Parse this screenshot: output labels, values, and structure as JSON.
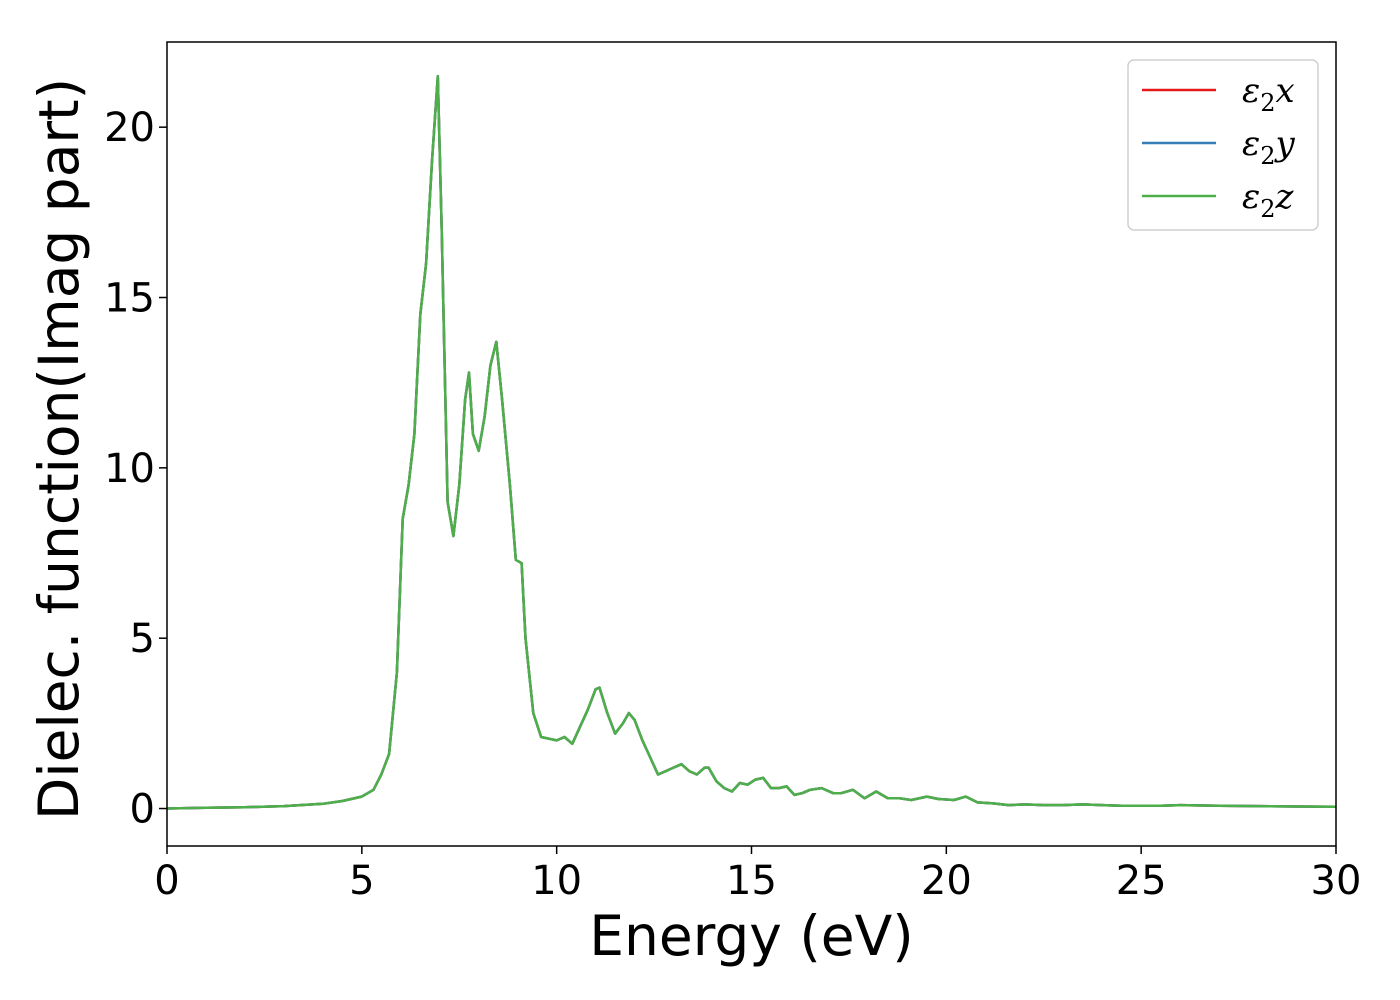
{
  "chart_data": {
    "type": "line",
    "title": "",
    "xlabel": "Energy (eV)",
    "ylabel": "Dielec. function(Imag part)",
    "xlim": [
      0,
      30
    ],
    "ylim": [
      -1.1,
      22.5
    ],
    "xticks": [
      0,
      5,
      10,
      15,
      20,
      25,
      30
    ],
    "yticks": [
      0,
      5,
      10,
      15,
      20
    ],
    "grid": false,
    "legend_position": "top-right",
    "x": [
      0,
      1,
      2,
      3,
      4,
      4.5,
      5,
      5.3,
      5.5,
      5.7,
      5.9,
      6.05,
      6.2,
      6.35,
      6.5,
      6.65,
      6.8,
      6.95,
      7.05,
      7.2,
      7.35,
      7.5,
      7.65,
      7.75,
      7.85,
      8.0,
      8.15,
      8.3,
      8.45,
      8.6,
      8.8,
      8.95,
      9.1,
      9.2,
      9.4,
      9.6,
      9.8,
      10.0,
      10.2,
      10.4,
      10.6,
      10.8,
      11.0,
      11.1,
      11.3,
      11.5,
      11.7,
      11.85,
      12.0,
      12.2,
      12.4,
      12.6,
      12.8,
      13.0,
      13.2,
      13.4,
      13.6,
      13.8,
      13.9,
      14.1,
      14.3,
      14.5,
      14.7,
      14.9,
      15.1,
      15.3,
      15.5,
      15.7,
      15.9,
      16.1,
      16.3,
      16.5,
      16.8,
      17.1,
      17.3,
      17.6,
      17.9,
      18.2,
      18.5,
      18.8,
      19.1,
      19.5,
      19.8,
      20.2,
      20.5,
      20.8,
      21.2,
      21.6,
      22,
      22.5,
      23,
      23.5,
      24,
      24.5,
      25,
      25.5,
      26,
      27,
      28,
      29,
      30
    ],
    "series": [
      {
        "name": "ε₂x",
        "label_base": "ε",
        "label_sub": "2",
        "label_tail": "x",
        "color": "#e41a1c",
        "values": [
          0,
          0.02,
          0.04,
          0.07,
          0.14,
          0.22,
          0.35,
          0.55,
          1.0,
          1.6,
          4.0,
          8.5,
          9.5,
          11.0,
          14.5,
          16.0,
          19.0,
          21.5,
          17.0,
          9.0,
          8.0,
          9.5,
          12.0,
          12.8,
          11.0,
          10.5,
          11.5,
          13.0,
          13.7,
          12.0,
          9.5,
          7.3,
          7.2,
          5.0,
          2.8,
          2.1,
          2.05,
          2.0,
          2.1,
          1.9,
          2.4,
          2.9,
          3.5,
          3.55,
          2.8,
          2.2,
          2.5,
          2.8,
          2.6,
          2.0,
          1.5,
          1.0,
          1.1,
          1.2,
          1.3,
          1.1,
          1.0,
          1.2,
          1.2,
          0.8,
          0.6,
          0.5,
          0.75,
          0.7,
          0.85,
          0.9,
          0.6,
          0.6,
          0.65,
          0.4,
          0.45,
          0.55,
          0.6,
          0.45,
          0.45,
          0.55,
          0.3,
          0.5,
          0.3,
          0.3,
          0.25,
          0.35,
          0.28,
          0.25,
          0.35,
          0.18,
          0.15,
          0.1,
          0.12,
          0.1,
          0.1,
          0.12,
          0.1,
          0.08,
          0.08,
          0.08,
          0.1,
          0.08,
          0.07,
          0.06,
          0.05
        ]
      },
      {
        "name": "ε₂y",
        "label_base": "ε",
        "label_sub": "2",
        "label_tail": "y",
        "color": "#377eb8",
        "values": [
          0,
          0.02,
          0.04,
          0.07,
          0.14,
          0.22,
          0.35,
          0.55,
          1.0,
          1.6,
          4.0,
          8.5,
          9.5,
          11.0,
          14.5,
          16.0,
          19.0,
          21.5,
          17.0,
          9.0,
          8.0,
          9.5,
          12.0,
          12.8,
          11.0,
          10.5,
          11.5,
          13.0,
          13.7,
          12.0,
          9.5,
          7.3,
          7.2,
          5.0,
          2.8,
          2.1,
          2.05,
          2.0,
          2.1,
          1.9,
          2.4,
          2.9,
          3.5,
          3.55,
          2.8,
          2.2,
          2.5,
          2.8,
          2.6,
          2.0,
          1.5,
          1.0,
          1.1,
          1.2,
          1.3,
          1.1,
          1.0,
          1.2,
          1.2,
          0.8,
          0.6,
          0.5,
          0.75,
          0.7,
          0.85,
          0.9,
          0.6,
          0.6,
          0.65,
          0.4,
          0.45,
          0.55,
          0.6,
          0.45,
          0.45,
          0.55,
          0.3,
          0.5,
          0.3,
          0.3,
          0.25,
          0.35,
          0.28,
          0.25,
          0.35,
          0.18,
          0.15,
          0.1,
          0.12,
          0.1,
          0.1,
          0.12,
          0.1,
          0.08,
          0.08,
          0.08,
          0.1,
          0.08,
          0.07,
          0.06,
          0.05
        ]
      },
      {
        "name": "ε₂z",
        "label_base": "ε",
        "label_sub": "2",
        "label_tail": "z",
        "color": "#4daf4a",
        "values": [
          0,
          0.02,
          0.04,
          0.07,
          0.14,
          0.22,
          0.35,
          0.55,
          1.0,
          1.6,
          4.0,
          8.5,
          9.5,
          11.0,
          14.5,
          16.0,
          19.0,
          21.5,
          17.0,
          9.0,
          8.0,
          9.5,
          12.0,
          12.8,
          11.0,
          10.5,
          11.5,
          13.0,
          13.7,
          12.0,
          9.5,
          7.3,
          7.2,
          5.0,
          2.8,
          2.1,
          2.05,
          2.0,
          2.1,
          1.9,
          2.4,
          2.9,
          3.5,
          3.55,
          2.8,
          2.2,
          2.5,
          2.8,
          2.6,
          2.0,
          1.5,
          1.0,
          1.1,
          1.2,
          1.3,
          1.1,
          1.0,
          1.2,
          1.2,
          0.8,
          0.6,
          0.5,
          0.75,
          0.7,
          0.85,
          0.9,
          0.6,
          0.6,
          0.65,
          0.4,
          0.45,
          0.55,
          0.6,
          0.45,
          0.45,
          0.55,
          0.3,
          0.5,
          0.3,
          0.3,
          0.25,
          0.35,
          0.28,
          0.25,
          0.35,
          0.18,
          0.15,
          0.1,
          0.12,
          0.1,
          0.1,
          0.12,
          0.1,
          0.08,
          0.08,
          0.08,
          0.1,
          0.08,
          0.07,
          0.06,
          0.05
        ]
      }
    ]
  }
}
